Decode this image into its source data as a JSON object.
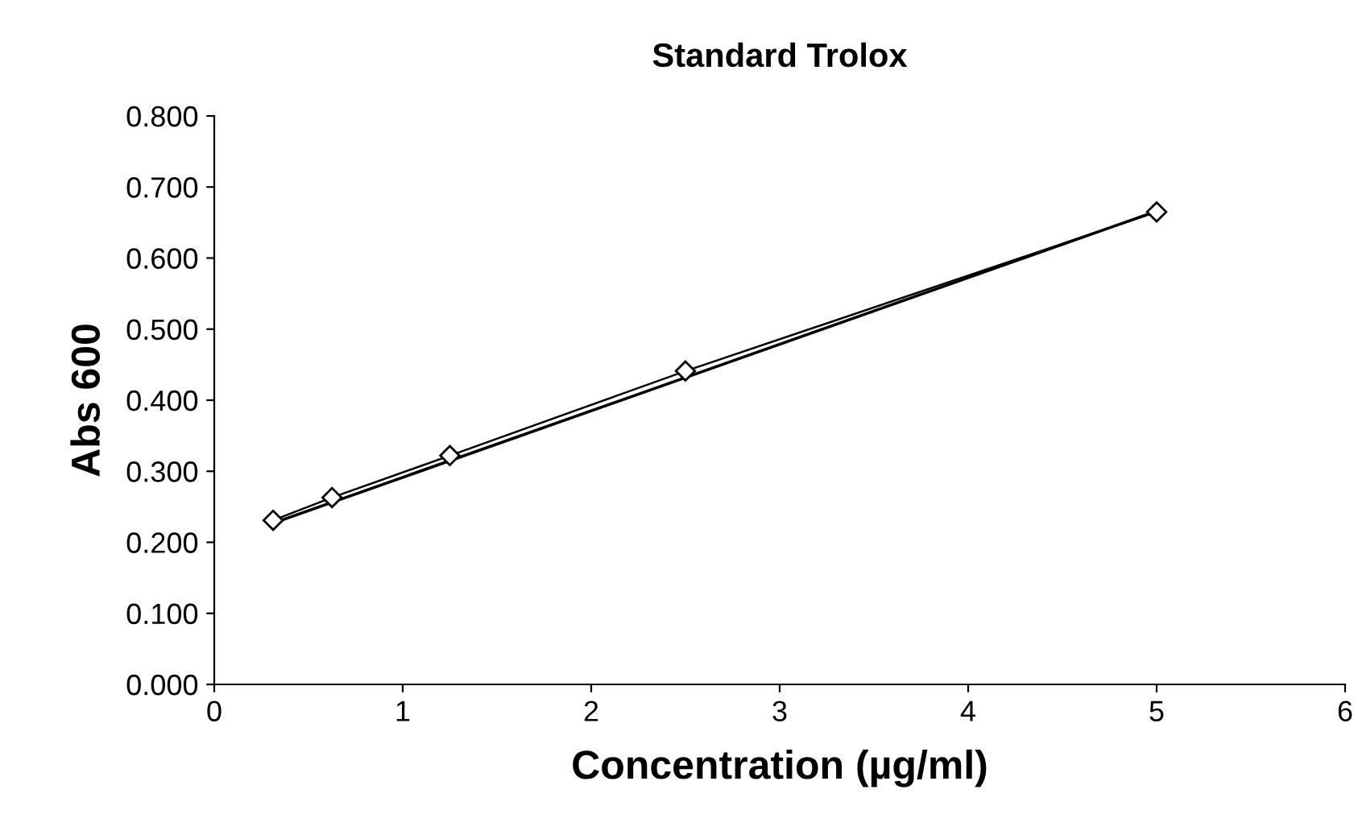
{
  "chart_data": {
    "type": "line",
    "title": "Standard Trolox",
    "xlabel": "Concentration (µg/ml)",
    "ylabel": "Abs 600",
    "series": [
      {
        "color": "#000000",
        "marker": "diamond",
        "x": [
          0.3125,
          0.625,
          1.25,
          2.5,
          5
        ],
        "values": [
          0.231,
          0.263,
          0.322,
          0.441,
          0.665
        ]
      },
      {
        "color": "#000000",
        "marker": "none",
        "x": [
          0.3125,
          5
        ],
        "values": [
          0.227,
          0.666
        ]
      }
    ],
    "xlim": [
      0,
      6
    ],
    "xticks": [
      0,
      1,
      2,
      3,
      4,
      5,
      6
    ],
    "ylim": [
      0,
      0.8
    ],
    "yticks": [
      {
        "value": 0,
        "label": "0.000"
      },
      {
        "value": 0.1,
        "label": "0.100"
      },
      {
        "value": 0.2,
        "label": "0.200"
      },
      {
        "value": 0.3,
        "label": "0.300"
      },
      {
        "value": 0.4,
        "label": "0.400"
      },
      {
        "value": 0.5,
        "label": "0.500"
      },
      {
        "value": 0.6,
        "label": "0.600"
      },
      {
        "value": 0.7,
        "label": "0.700"
      },
      {
        "value": 0.8,
        "label": "0.800"
      }
    ],
    "grid": false,
    "legend": false
  }
}
